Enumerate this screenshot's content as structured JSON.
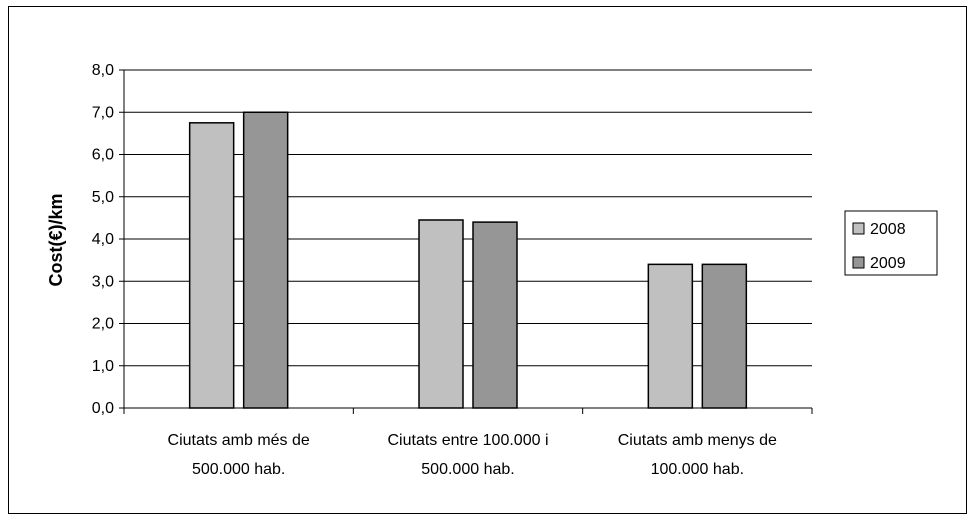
{
  "chart_data": {
    "type": "bar",
    "title": "",
    "xlabel": "",
    "ylabel": "Cost(€)/km",
    "ylim": [
      0,
      8
    ],
    "yticks": [
      "0,0",
      "1,0",
      "2,0",
      "3,0",
      "4,0",
      "5,0",
      "6,0",
      "7,0",
      "8,0"
    ],
    "categories": [
      [
        "Ciutats amb més de",
        "500.000 hab."
      ],
      [
        "Ciutats entre 100.000 i",
        "500.000 hab."
      ],
      [
        "Ciutats amb menys de",
        "100.000 hab."
      ]
    ],
    "series": [
      {
        "name": "2008",
        "values": [
          6.75,
          4.45,
          3.4
        ],
        "color": "#c0c0c0"
      },
      {
        "name": "2009",
        "values": [
          7.0,
          4.4,
          3.4
        ],
        "color": "#969696"
      }
    ],
    "grid": true,
    "legend": "right"
  }
}
